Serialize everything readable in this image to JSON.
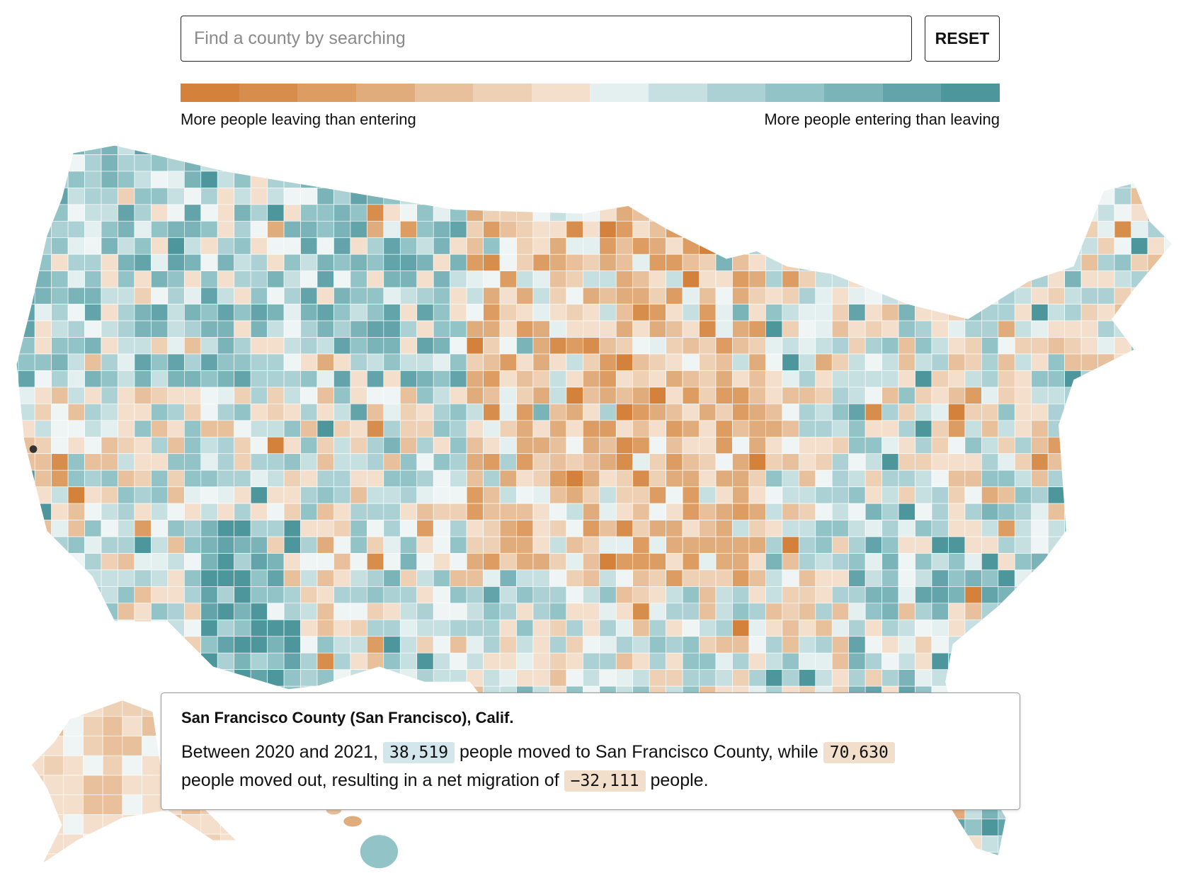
{
  "search": {
    "placeholder": "Find a county by searching",
    "value": ""
  },
  "reset_label": "RESET",
  "legend": {
    "colors": [
      "#d4813b",
      "#d78e4d",
      "#dc9c62",
      "#e1ac7b",
      "#e8c19c",
      "#eed0b5",
      "#f4dfcd",
      "#e4eff0",
      "#c6e0e1",
      "#acd1d4",
      "#92c3c6",
      "#7ab4b8",
      "#62a4a9",
      "#4d979c"
    ],
    "left_label": "More people leaving than entering",
    "right_label": "More people entering than leaving"
  },
  "map": {
    "type": "choropleth",
    "region": "US counties",
    "highlighted_county": "San Francisco County"
  },
  "tooltip": {
    "title": "San Francisco County (San Francisco), Calif.",
    "text_1": "Between 2020 and 2021,",
    "moved_in": "38,519",
    "text_2": "people moved to San Francisco County, while",
    "moved_out": "70,630",
    "text_3": "people moved out, resulting in a net migration of",
    "net": "−32,111",
    "text_4": "people."
  }
}
